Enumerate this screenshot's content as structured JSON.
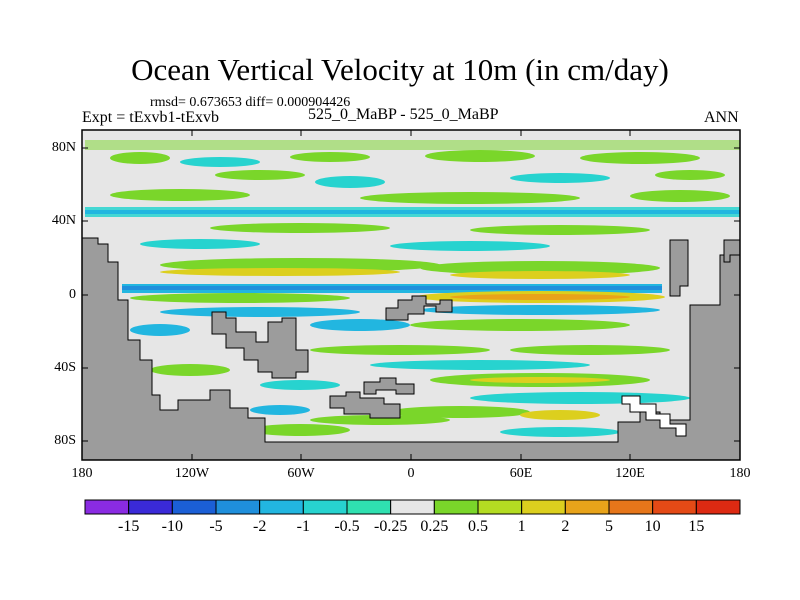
{
  "title": "Ocean Vertical Velocity at 10m (in cm/day)",
  "stats": "rmsd= 0.673653  diff= 0.000904426",
  "expt": "Expt = tExvb1-tExvb",
  "period": "525_0_MaBP - 525_0_MaBP",
  "season": "ANN",
  "lat_labels": [
    "80N",
    "40N",
    "0",
    "40S",
    "80S"
  ],
  "lon_labels": [
    "180",
    "120W",
    "60W",
    "0",
    "60E",
    "120E",
    "180"
  ],
  "colorbar": {
    "labels": [
      "-15",
      "-10",
      "-5",
      "-2",
      "-1",
      "-0.5",
      "-0.25",
      "0.25",
      "0.5",
      "1",
      "2",
      "5",
      "10",
      "15"
    ],
    "colors": [
      "#8a2be2",
      "#3a2ad8",
      "#1b5fd6",
      "#1f8fdc",
      "#22b6e0",
      "#27d3cf",
      "#2fe0b0",
      "#e6e6e6",
      "#7ad62a",
      "#b4dc22",
      "#dccf1e",
      "#e8a31a",
      "#e6761a",
      "#e44a16",
      "#dd2a12"
    ]
  },
  "colors": {
    "land": "#9c9c9c",
    "ocean_neutral": "#e6e6e6"
  }
}
